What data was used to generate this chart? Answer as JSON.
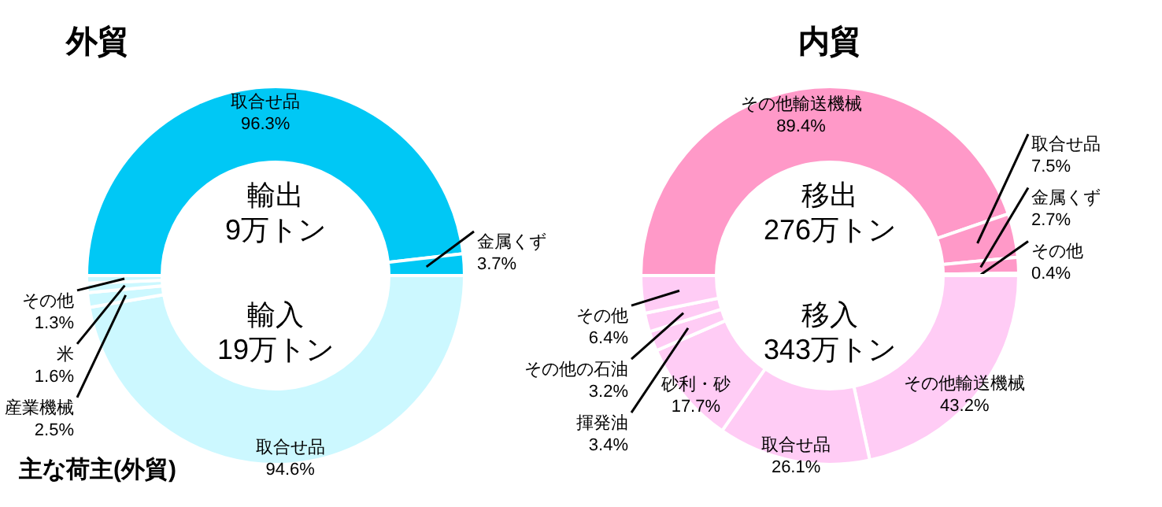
{
  "chart_data": [
    {
      "type": "donut",
      "title": "外貿",
      "categories": [
        "取合せ品",
        "金属くず"
      ],
      "values": [
        96.3,
        3.7
      ],
      "colors": [
        "#00c8f5",
        "#00c8f5"
      ],
      "value_labels": [
        "96.3%",
        "3.7%"
      ],
      "annotations": [
        "輸出",
        "9万トン"
      ]
    },
    {
      "type": "donut",
      "categories": [
        "取合せ品",
        "産業機械",
        "米",
        "その他"
      ],
      "values": [
        94.6,
        2.5,
        1.6,
        1.3
      ],
      "colors": [
        "#ccf8ff",
        "#ccf8ff",
        "#ccf8ff",
        "#ccf8ff"
      ],
      "value_labels": [
        "94.6%",
        "2.5%",
        "1.6%",
        "1.3%"
      ],
      "annotations": [
        "輸入",
        "19万トン",
        "主な荷主(外貿)"
      ]
    },
    {
      "type": "donut",
      "title": "内貿",
      "categories": [
        "その他輸送機械",
        "取合せ品",
        "金属くず",
        "その他"
      ],
      "values": [
        89.4,
        7.5,
        2.7,
        0.4
      ],
      "colors": [
        "#ff99c8",
        "#ff99c8",
        "#ff99c8",
        "#ff99c8"
      ],
      "value_labels": [
        "89.4%",
        "7.5%",
        "2.7%",
        "0.4%"
      ],
      "annotations": [
        "移出",
        "276万トン"
      ]
    },
    {
      "type": "donut",
      "categories": [
        "その他輸送機械",
        "取合せ品",
        "砂利・砂",
        "揮発油",
        "その他の石油",
        "その他"
      ],
      "values": [
        43.2,
        26.1,
        17.7,
        3.4,
        3.2,
        6.4
      ],
      "colors": [
        "#ffccf5",
        "#ffccf5",
        "#ffccf5",
        "#ffccf5",
        "#ffccf5",
        "#ffccf5"
      ],
      "value_labels": [
        "43.2%",
        "26.1%",
        "17.7%",
        "3.4%",
        "3.2%",
        "6.4%"
      ],
      "annotations": [
        "移入",
        "343万トン"
      ]
    }
  ]
}
